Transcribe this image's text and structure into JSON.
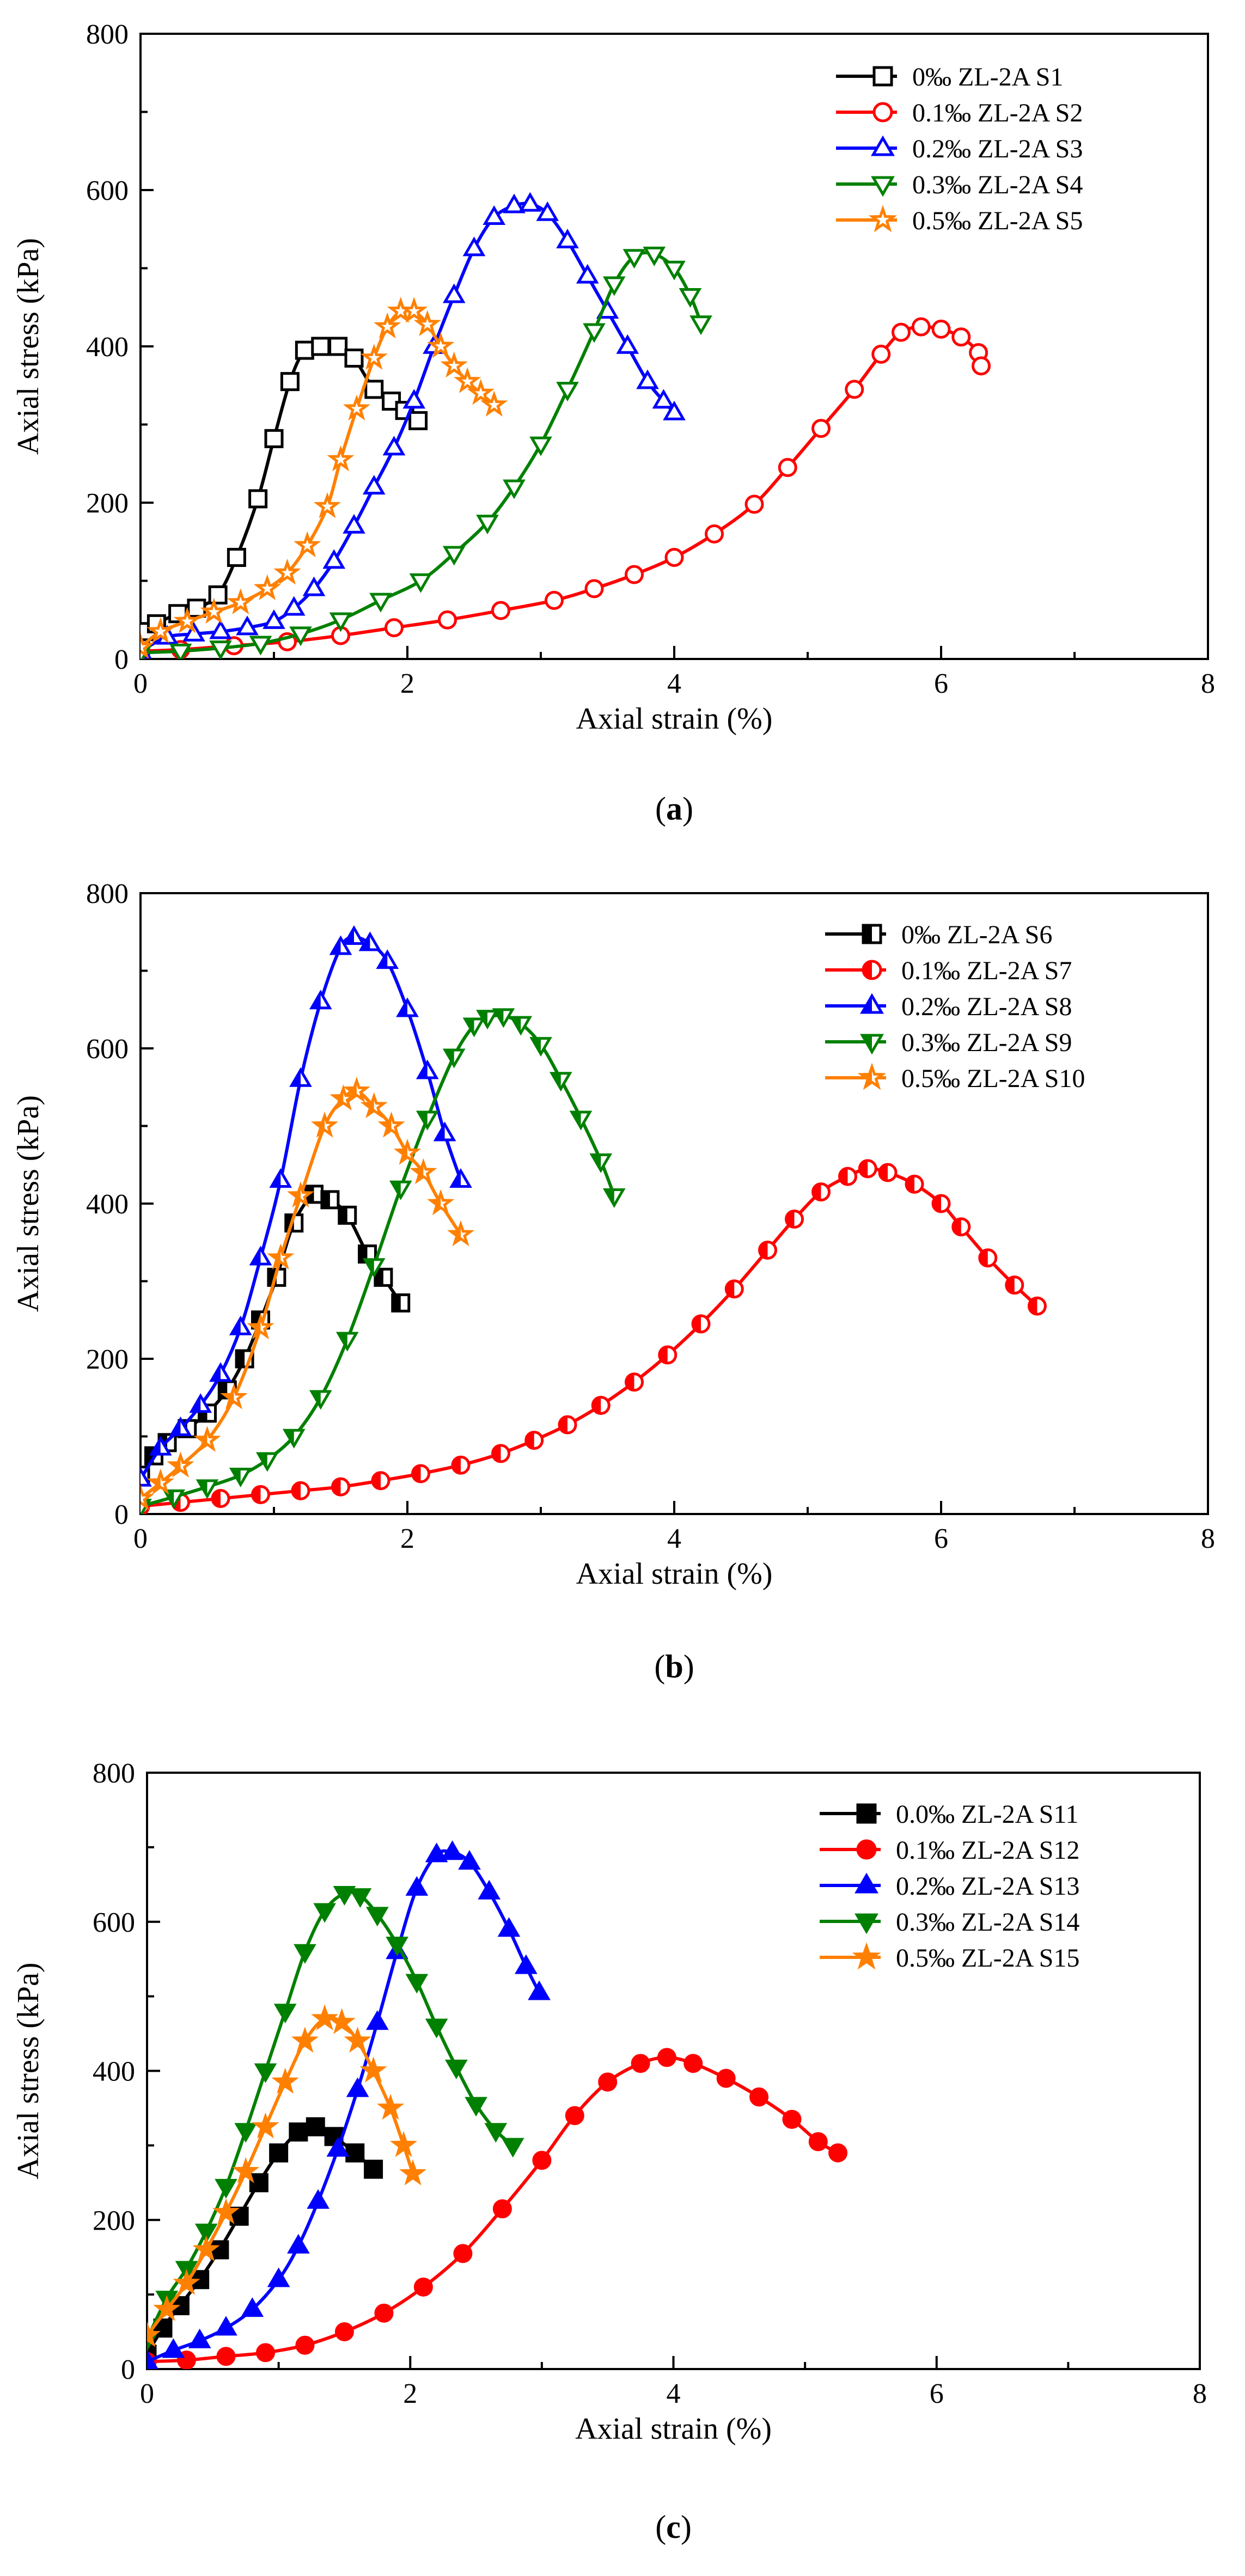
{
  "chart_data": [
    {
      "type": "line",
      "caption": "(a)",
      "caption_letter": "a",
      "xlabel": "Axial strain (%)",
      "ylabel": "Axial stress (kPa)",
      "xlim": [
        0,
        8
      ],
      "ylim": [
        0,
        800
      ],
      "xticks": [
        0,
        2,
        4,
        6,
        8
      ],
      "yticks": [
        0,
        200,
        400,
        600,
        800
      ],
      "grid": false,
      "legend_position": "top-right",
      "marker_fill": "open",
      "series": [
        {
          "name": "0‰   ZL-2A S1",
          "color": "#000000",
          "marker": "square",
          "x": [
            0.0,
            0.05,
            0.12,
            0.28,
            0.42,
            0.58,
            0.72,
            0.88,
            1.0,
            1.12,
            1.23,
            1.35,
            1.48,
            1.6,
            1.75,
            1.88,
            1.98,
            2.08
          ],
          "y": [
            15,
            35,
            45,
            58,
            65,
            82,
            130,
            205,
            282,
            355,
            395,
            400,
            400,
            385,
            345,
            330,
            318,
            305
          ]
        },
        {
          "name": "0.1‰ ZL-2A S2",
          "color": "#ff0000",
          "marker": "circle",
          "x": [
            0.0,
            0.3,
            0.7,
            1.1,
            1.5,
            1.9,
            2.3,
            2.7,
            3.1,
            3.4,
            3.7,
            4.0,
            4.3,
            4.6,
            4.85,
            5.1,
            5.35,
            5.55,
            5.7,
            5.85,
            6.0,
            6.15,
            6.28,
            6.3
          ],
          "y": [
            10,
            12,
            17,
            22,
            30,
            40,
            50,
            62,
            75,
            90,
            108,
            130,
            160,
            198,
            245,
            295,
            345,
            390,
            418,
            425,
            422,
            412,
            392,
            375
          ]
        },
        {
          "name": "0.2‰ ZL-2A S3",
          "color": "#0000ff",
          "marker": "triangle-up",
          "x": [
            0.0,
            0.2,
            0.4,
            0.6,
            0.8,
            1.0,
            1.15,
            1.3,
            1.45,
            1.6,
            1.75,
            1.9,
            2.05,
            2.2,
            2.35,
            2.5,
            2.65,
            2.8,
            2.92,
            3.05,
            3.2,
            3.35,
            3.5,
            3.65,
            3.8,
            3.92,
            4.0
          ],
          "y": [
            10,
            28,
            32,
            35,
            40,
            48,
            65,
            90,
            125,
            170,
            220,
            270,
            330,
            400,
            465,
            525,
            565,
            580,
            582,
            570,
            535,
            490,
            445,
            400,
            355,
            330,
            315
          ]
        },
        {
          "name": "0.3‰ ZL-2A S4",
          "color": "#008000",
          "marker": "triangle-down",
          "x": [
            0.0,
            0.3,
            0.6,
            0.9,
            1.2,
            1.5,
            1.8,
            2.1,
            2.35,
            2.6,
            2.8,
            3.0,
            3.2,
            3.4,
            3.55,
            3.7,
            3.85,
            4.0,
            4.12,
            4.2
          ],
          "y": [
            8,
            10,
            14,
            20,
            32,
            50,
            75,
            100,
            135,
            175,
            220,
            275,
            345,
            420,
            480,
            515,
            518,
            500,
            465,
            430
          ]
        },
        {
          "name": "0.5‰ ZL-2A S5",
          "color": "#ff8000",
          "marker": "star",
          "x": [
            0.0,
            0.15,
            0.35,
            0.55,
            0.75,
            0.95,
            1.1,
            1.25,
            1.4,
            1.5,
            1.62,
            1.75,
            1.85,
            1.95,
            2.05,
            2.15,
            2.25,
            2.35,
            2.45,
            2.55,
            2.65
          ],
          "y": [
            15,
            35,
            48,
            60,
            72,
            90,
            110,
            145,
            195,
            255,
            320,
            385,
            425,
            445,
            445,
            428,
            400,
            375,
            355,
            340,
            325
          ]
        }
      ]
    },
    {
      "type": "line",
      "caption": "(b)",
      "caption_letter": "b",
      "xlabel": "Axial strain (%)",
      "ylabel": "Axial stress (kPa)",
      "xlim": [
        0,
        8
      ],
      "ylim": [
        0,
        800
      ],
      "xticks": [
        0,
        2,
        4,
        6,
        8
      ],
      "yticks": [
        0,
        200,
        400,
        600,
        800
      ],
      "grid": false,
      "legend_position": "top-right",
      "marker_fill": "half",
      "series": [
        {
          "name": "0‰   ZL-2A S6",
          "color": "#000000",
          "marker": "square",
          "x": [
            0.0,
            0.1,
            0.2,
            0.35,
            0.5,
            0.65,
            0.78,
            0.9,
            1.02,
            1.15,
            1.3,
            1.42,
            1.55,
            1.7,
            1.82,
            1.95
          ],
          "y": [
            50,
            75,
            92,
            110,
            130,
            160,
            200,
            250,
            305,
            375,
            412,
            405,
            385,
            335,
            305,
            272
          ]
        },
        {
          "name": "0.1‰ ZL-2A S7",
          "color": "#ff0000",
          "marker": "circle",
          "x": [
            0.0,
            0.3,
            0.6,
            0.9,
            1.2,
            1.5,
            1.8,
            2.1,
            2.4,
            2.7,
            2.95,
            3.2,
            3.45,
            3.7,
            3.95,
            4.2,
            4.45,
            4.7,
            4.9,
            5.1,
            5.3,
            5.45,
            5.6,
            5.8,
            6.0,
            6.15,
            6.35,
            6.55,
            6.72
          ],
          "y": [
            10,
            15,
            20,
            25,
            30,
            35,
            43,
            52,
            63,
            78,
            95,
            115,
            140,
            170,
            205,
            245,
            290,
            340,
            380,
            415,
            435,
            445,
            440,
            425,
            400,
            370,
            330,
            295,
            268
          ]
        },
        {
          "name": "0.2‰ ZL-2A S8",
          "color": "#0000ff",
          "marker": "triangle-up",
          "x": [
            0.0,
            0.15,
            0.3,
            0.45,
            0.6,
            0.75,
            0.9,
            1.05,
            1.2,
            1.35,
            1.5,
            1.6,
            1.72,
            1.85,
            2.0,
            2.15,
            2.28,
            2.4
          ],
          "y": [
            45,
            85,
            110,
            140,
            180,
            240,
            330,
            430,
            560,
            660,
            730,
            743,
            735,
            712,
            650,
            570,
            490,
            430
          ]
        },
        {
          "name": "0.3‰ ZL-2A S9",
          "color": "#008000",
          "marker": "triangle-down",
          "x": [
            0.0,
            0.25,
            0.5,
            0.75,
            0.95,
            1.15,
            1.35,
            1.55,
            1.75,
            1.95,
            2.15,
            2.35,
            2.5,
            2.6,
            2.72,
            2.85,
            3.0,
            3.15,
            3.3,
            3.45,
            3.55
          ],
          "y": [
            10,
            22,
            35,
            50,
            70,
            100,
            150,
            225,
            320,
            420,
            510,
            590,
            630,
            640,
            642,
            632,
            605,
            560,
            510,
            455,
            410
          ]
        },
        {
          "name": "0.5‰ ZL-2A S10",
          "color": "#ff8000",
          "marker": "star",
          "x": [
            0.0,
            0.15,
            0.3,
            0.5,
            0.7,
            0.9,
            1.05,
            1.2,
            1.38,
            1.52,
            1.62,
            1.75,
            1.88,
            2.0,
            2.12,
            2.25,
            2.4
          ],
          "y": [
            20,
            40,
            62,
            95,
            150,
            240,
            330,
            410,
            500,
            535,
            545,
            525,
            500,
            465,
            440,
            400,
            360
          ]
        }
      ]
    },
    {
      "type": "line",
      "caption": "(c)",
      "caption_letter": "c",
      "xlabel": "Axial strain (%)",
      "ylabel": "Axial stress (kPa)",
      "xlim": [
        0,
        8
      ],
      "ylim": [
        0,
        800
      ],
      "xticks": [
        0,
        2,
        4,
        6,
        8
      ],
      "yticks": [
        0,
        200,
        400,
        600,
        800
      ],
      "grid": false,
      "legend_position": "top-right",
      "marker_fill": "solid",
      "series": [
        {
          "name": "0.0‰ ZL-2A S11",
          "color": "#000000",
          "marker": "square",
          "x": [
            0.0,
            0.12,
            0.25,
            0.4,
            0.55,
            0.7,
            0.85,
            1.0,
            1.15,
            1.28,
            1.42,
            1.58,
            1.72
          ],
          "y": [
            20,
            55,
            85,
            120,
            160,
            205,
            250,
            290,
            318,
            325,
            312,
            290,
            268
          ]
        },
        {
          "name": "0.1‰ ZL-2A S12",
          "color": "#ff0000",
          "marker": "circle",
          "x": [
            0.0,
            0.3,
            0.6,
            0.9,
            1.2,
            1.5,
            1.8,
            2.1,
            2.4,
            2.7,
            3.0,
            3.25,
            3.5,
            3.75,
            3.95,
            4.15,
            4.4,
            4.65,
            4.9,
            5.1,
            5.25
          ],
          "y": [
            10,
            12,
            17,
            22,
            32,
            50,
            75,
            110,
            155,
            215,
            280,
            340,
            385,
            410,
            418,
            410,
            390,
            365,
            335,
            305,
            290
          ]
        },
        {
          "name": "0.2‰ ZL-2A S13",
          "color": "#0000ff",
          "marker": "triangle-up",
          "x": [
            0.0,
            0.2,
            0.4,
            0.6,
            0.8,
            1.0,
            1.15,
            1.3,
            1.45,
            1.6,
            1.75,
            1.9,
            2.05,
            2.2,
            2.32,
            2.45,
            2.6,
            2.75,
            2.88,
            2.98
          ],
          "y": [
            10,
            25,
            38,
            55,
            80,
            120,
            165,
            225,
            295,
            375,
            465,
            560,
            645,
            690,
            693,
            680,
            640,
            590,
            540,
            505
          ]
        },
        {
          "name": "0.3‰ ZL-2A S14",
          "color": "#008000",
          "marker": "triangle-down",
          "x": [
            0.0,
            0.15,
            0.3,
            0.45,
            0.6,
            0.75,
            0.9,
            1.05,
            1.2,
            1.35,
            1.5,
            1.62,
            1.75,
            1.9,
            2.05,
            2.2,
            2.35,
            2.5,
            2.65,
            2.78
          ],
          "y": [
            40,
            95,
            135,
            185,
            245,
            320,
            400,
            480,
            560,
            615,
            638,
            635,
            610,
            570,
            520,
            460,
            405,
            355,
            320,
            300
          ]
        },
        {
          "name": "0.5‰ ZL-2A S15",
          "color": "#ff8000",
          "marker": "star",
          "x": [
            0.0,
            0.15,
            0.3,
            0.45,
            0.6,
            0.75,
            0.9,
            1.05,
            1.2,
            1.35,
            1.48,
            1.6,
            1.72,
            1.85,
            1.95,
            2.02
          ],
          "y": [
            45,
            80,
            115,
            160,
            210,
            265,
            325,
            385,
            440,
            470,
            465,
            440,
            400,
            350,
            300,
            262
          ]
        }
      ]
    }
  ]
}
